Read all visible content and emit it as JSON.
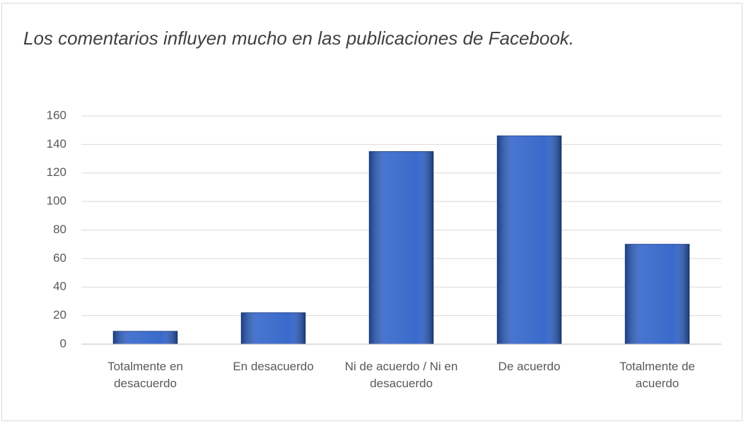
{
  "chart_data": {
    "type": "bar",
    "title": "Los comentarios influyen mucho en las publicaciones de Facebook.",
    "categories": [
      "Totalmente en desacuerdo",
      "En desacuerdo",
      "Ni de acuerdo / Ni en desacuerdo",
      "De acuerdo",
      "Totalmente de acuerdo"
    ],
    "values": [
      9,
      22,
      135,
      146,
      70
    ],
    "color": "#2f62c8",
    "ylim": [
      0,
      160
    ],
    "yticks": [
      0,
      20,
      40,
      60,
      80,
      100,
      120,
      140,
      160
    ],
    "grid": true
  }
}
